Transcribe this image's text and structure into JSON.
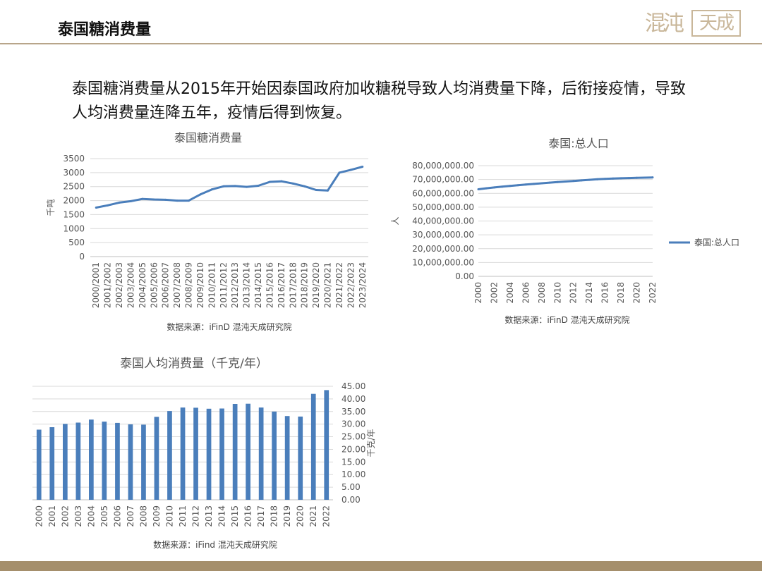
{
  "header": {
    "title": "泰国糖消费量",
    "logo_left": "混沌",
    "logo_right": "天成"
  },
  "summary": "泰国糖消费量从2015年开始因泰国政府加收糖税导致人均消费量下降，后衔接疫情，导致人均消费量连降五年，疫情后得到恢复。",
  "colors": {
    "series": "#4a7ebb",
    "grid": "#d9d9d9",
    "footer": "#a58f6c",
    "rule": "#b8a58a"
  },
  "chart_data": [
    {
      "type": "line",
      "title": "泰国糖消费量",
      "ylabel": "千吨",
      "ylim": [
        0,
        3500
      ],
      "yticks": [
        "0",
        "500",
        "1000",
        "1500",
        "2000",
        "2500",
        "3000",
        "3500"
      ],
      "categories": [
        "2000/2001",
        "2001/2002",
        "2002/2003",
        "2003/2004",
        "2004/2005",
        "2005/2006",
        "2006/2007",
        "2007/2008",
        "2008/2009",
        "2009/2010",
        "2010/2011",
        "2011/2012",
        "2012/2013",
        "2013/2014",
        "2014/2015",
        "2015/2016",
        "2016/2017",
        "2017/2018",
        "2018/2019",
        "2019/2020",
        "2020/2021",
        "2021/2022",
        "2022/2023",
        "2023/2024"
      ],
      "values": [
        1750,
        1830,
        1930,
        1980,
        2060,
        2040,
        2030,
        2000,
        2000,
        2220,
        2400,
        2510,
        2520,
        2490,
        2530,
        2670,
        2690,
        2610,
        2510,
        2380,
        2360,
        3000,
        3100,
        3210
      ],
      "grid": true,
      "source": "数据来源：iFinD 混沌天成研究院"
    },
    {
      "type": "line",
      "title": "泰国:总人口",
      "ylabel": "人",
      "ylim": [
        0,
        80000000
      ],
      "yticks": [
        "0.00",
        "10,000,000.00",
        "20,000,000.00",
        "30,000,000.00",
        "40,000,000.00",
        "50,000,000.00",
        "60,000,000.00",
        "70,000,000.00",
        "80,000,000.00"
      ],
      "x": [
        2000,
        2001,
        2002,
        2003,
        2004,
        2005,
        2006,
        2007,
        2008,
        2009,
        2010,
        2011,
        2012,
        2013,
        2014,
        2015,
        2016,
        2017,
        2018,
        2019,
        2020,
        2021,
        2022
      ],
      "xticks": [
        "2000",
        "2002",
        "2004",
        "2006",
        "2008",
        "2010",
        "2012",
        "2014",
        "2016",
        "2018",
        "2020",
        "2022"
      ],
      "series": [
        {
          "name": "泰国:总人口",
          "values": [
            62950000,
            63650000,
            64250000,
            64800000,
            65350000,
            65850000,
            66350000,
            66800000,
            67250000,
            67700000,
            68150000,
            68550000,
            68950000,
            69350000,
            69750000,
            70150000,
            70450000,
            70700000,
            70900000,
            71050000,
            71200000,
            71350000,
            71500000
          ]
        }
      ],
      "legend": "right",
      "grid": true,
      "source": "数据来源：iFinD 混沌天成研究院"
    },
    {
      "type": "bar",
      "title": "泰国人均消费量（千克/年）",
      "ylabel": "千克/年",
      "ylim": [
        0,
        45
      ],
      "yticks": [
        "0.00",
        "5.00",
        "10.00",
        "15.00",
        "20.00",
        "25.00",
        "30.00",
        "35.00",
        "40.00",
        "45.00"
      ],
      "categories": [
        "2000",
        "2001",
        "2002",
        "2003",
        "2004",
        "2005",
        "2006",
        "2007",
        "2008",
        "2009",
        "2010",
        "2011",
        "2012",
        "2013",
        "2014",
        "2015",
        "2016",
        "2017",
        "2018",
        "2019",
        "2020",
        "2021",
        "2022"
      ],
      "values": [
        27.8,
        28.8,
        30.1,
        30.6,
        31.8,
        31.0,
        30.5,
        29.9,
        29.8,
        32.9,
        35.2,
        36.6,
        36.5,
        36.1,
        36.2,
        38.0,
        38.1,
        36.6,
        35.0,
        33.2,
        33.0,
        42.0,
        43.5
      ],
      "grid": true,
      "axis_side": "right",
      "source": "数据来源：iFind  混沌天成研究院"
    }
  ]
}
